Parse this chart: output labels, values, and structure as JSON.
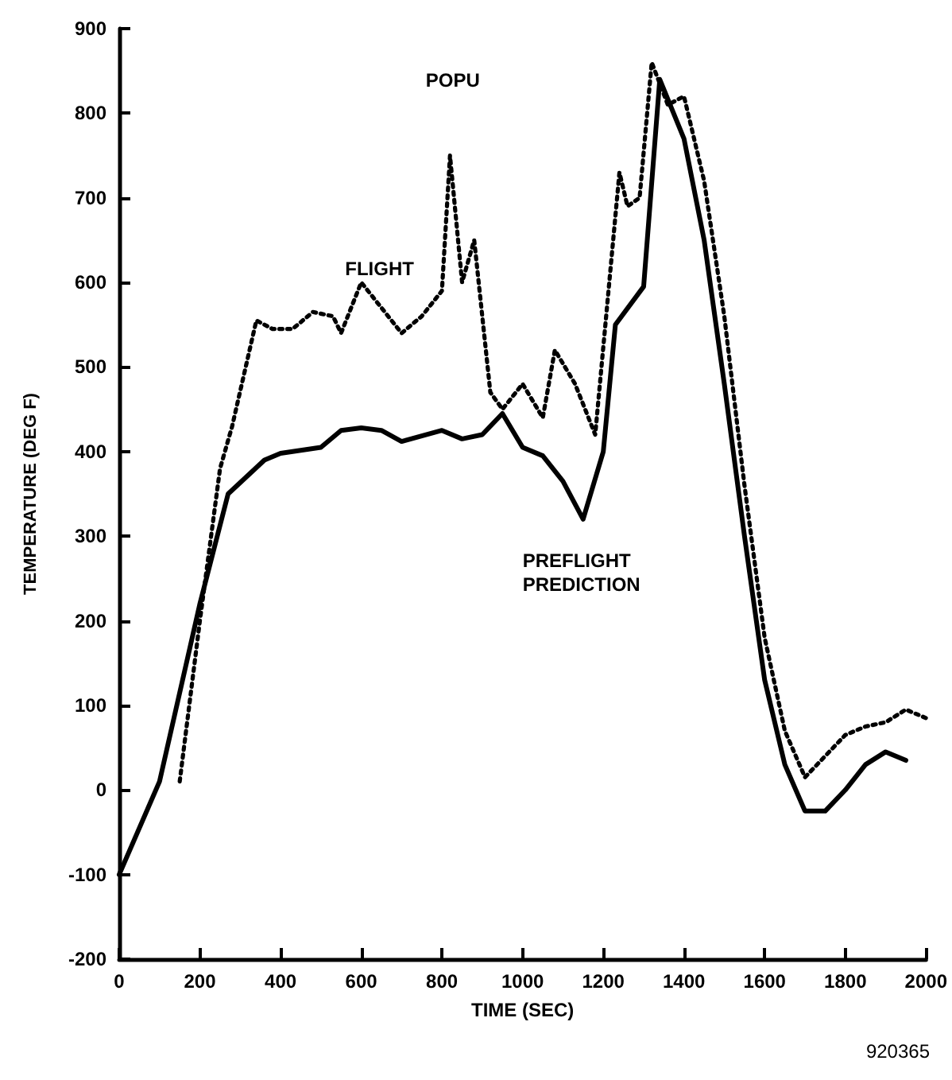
{
  "chart_data": {
    "type": "line",
    "xlabel": "TIME (SEC)",
    "ylabel": "TEMPERATURE (DEG F)",
    "xlim": [
      0,
      2000
    ],
    "xticks": [
      0,
      200,
      400,
      600,
      800,
      1000,
      1200,
      1400,
      1600,
      1800,
      2000
    ],
    "ylim": [
      -200,
      900
    ],
    "yticks": [
      -200,
      -100,
      0,
      100,
      200,
      300,
      400,
      500,
      600,
      700,
      800,
      900
    ],
    "grid": false,
    "legend": false,
    "marker": "none",
    "series": [
      {
        "name": "FLIGHT",
        "color": "#000000",
        "line_style": "dotted",
        "x": [
          150,
          200,
          250,
          280,
          340,
          380,
          430,
          480,
          530,
          550,
          600,
          650,
          700,
          750,
          800,
          820,
          850,
          880,
          920,
          950,
          1000,
          1050,
          1080,
          1130,
          1180,
          1240,
          1260,
          1290,
          1320,
          1360,
          1400,
          1450,
          1500,
          1550,
          1600,
          1650,
          1700,
          1750,
          1800,
          1850,
          1900,
          1950,
          2000
        ],
        "values": [
          10,
          200,
          380,
          430,
          555,
          545,
          545,
          565,
          560,
          540,
          600,
          570,
          540,
          560,
          590,
          750,
          600,
          650,
          470,
          450,
          480,
          440,
          520,
          480,
          420,
          730,
          690,
          700,
          860,
          810,
          820,
          720,
          560,
          360,
          180,
          70,
          15,
          40,
          65,
          75,
          80,
          95,
          85
        ]
      },
      {
        "name": "PREFLIGHT PREDICTION",
        "color": "#000000",
        "line_style": "solid",
        "x": [
          0,
          100,
          200,
          270,
          360,
          400,
          500,
          550,
          600,
          650,
          700,
          800,
          850,
          900,
          950,
          1000,
          1050,
          1100,
          1150,
          1200,
          1230,
          1300,
          1340,
          1400,
          1450,
          1500,
          1550,
          1600,
          1650,
          1700,
          1750,
          1800,
          1850,
          1900,
          1950
        ],
        "values": [
          -100,
          10,
          220,
          350,
          390,
          398,
          405,
          425,
          428,
          425,
          412,
          425,
          415,
          420,
          445,
          405,
          395,
          365,
          320,
          400,
          550,
          595,
          840,
          770,
          650,
          480,
          300,
          130,
          30,
          -25,
          -25,
          0,
          30,
          45,
          35
        ]
      }
    ],
    "annotations": [
      "POPU",
      "920365"
    ]
  }
}
